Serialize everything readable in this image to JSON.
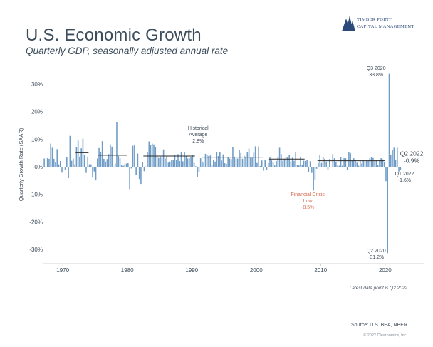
{
  "header": {
    "title": "U.S. Economic Growth",
    "subtitle": "Quarterly GDP, seasonally adjusted annual rate"
  },
  "logo": {
    "line1": "TIMBER POINT",
    "line2": "CAPITAL MANAGEMENT",
    "icon": "pine-trees-icon"
  },
  "footer": {
    "footnote": "Latest data point is Q2 2022",
    "source": "Source: U.S. BEA, NBER",
    "copyright": "© 2022 Clearnomics, Inc."
  },
  "colors": {
    "bar": "#6f9cc6",
    "average_line": "#2b2b2b",
    "recession_label": "#d96a4f",
    "text": "#3d4a57",
    "zero_line": "#8a8f94"
  },
  "chart_data": {
    "type": "bar",
    "ylabel": "Quarterly Growth Rate (SAAR)",
    "ylim": [
      -35,
      35
    ],
    "yticks": [
      30,
      20,
      10,
      0,
      -10,
      -20,
      -30
    ],
    "ytick_labels": [
      "30%",
      "20%",
      "10%",
      "-0%",
      "-10%",
      "-20%",
      "-30%"
    ],
    "xlim": [
      1967.0,
      2023.0
    ],
    "xticks": [
      1970,
      1980,
      1990,
      2000,
      2010,
      2020
    ],
    "xtick_labels": [
      "1970",
      "1980",
      "1990",
      "2000",
      "2010",
      "2020"
    ],
    "grid": false,
    "start_year": 1967,
    "start_quarter": 1,
    "values": [
      3.1,
      0.2,
      3.2,
      3.0,
      8.5,
      7.0,
      3.0,
      1.9,
      6.5,
      1.0,
      2.2,
      -2.0,
      0.1,
      -0.9,
      3.7,
      -4.0,
      11.3,
      2.3,
      3.1,
      1.0,
      7.3,
      9.6,
      3.8,
      6.8,
      10.3,
      4.5,
      -2.1,
      3.8,
      1.0,
      1.0,
      -3.8,
      -1.6,
      -4.8,
      3.1,
      6.9,
      5.4,
      9.4,
      3.0,
      2.0,
      2.9,
      4.7,
      8.2,
      7.4,
      0.0,
      1.3,
      16.4,
      4.0,
      3.2,
      0.7,
      0.5,
      1.0,
      1.3,
      1.4,
      -8.0,
      -0.5,
      7.7,
      8.1,
      -2.9,
      4.9,
      -4.3,
      -6.1,
      1.8,
      -1.5,
      0.2,
      5.3,
      9.3,
      8.1,
      8.5,
      8.2,
      7.1,
      3.9,
      3.3,
      3.8,
      3.4,
      6.4,
      3.1,
      4.0,
      1.6,
      2.0,
      2.5,
      2.5,
      4.5,
      2.7,
      4.7,
      2.2,
      5.3,
      2.1,
      5.4,
      4.1,
      3.1,
      3.2,
      3.7,
      4.4,
      1.5,
      0.3,
      -3.6,
      -1.9,
      3.2,
      2.0,
      1.6,
      4.8,
      4.4,
      4.0,
      4.2,
      0.7,
      2.6,
      2.0,
      5.5,
      4.0,
      5.5,
      2.4,
      4.6,
      1.4,
      1.2,
      3.5,
      3.1,
      2.9,
      7.2,
      3.6,
      3.1,
      3.1,
      6.2,
      5.1,
      3.0,
      4.1,
      3.8,
      5.3,
      6.7,
      3.4,
      3.4,
      5.2,
      7.5,
      1.5,
      7.5,
      0.4,
      2.4,
      -1.3,
      2.6,
      -1.1,
      1.4,
      3.5,
      2.4,
      1.8,
      0.6,
      2.2,
      3.5,
      7.0,
      4.7,
      2.3,
      3.0,
      3.7,
      3.5,
      4.3,
      2.1,
      3.4,
      2.3,
      5.4,
      0.9,
      0.6,
      3.5,
      0.9,
      2.3,
      2.2,
      2.5,
      -1.7,
      2.1,
      -2.1,
      -8.5,
      -4.5,
      -0.6,
      1.5,
      4.5,
      1.5,
      3.7,
      3.0,
      2.0,
      -1.0,
      2.9,
      -0.1,
      4.7,
      3.2,
      1.7,
      0.5,
      0.5,
      3.6,
      0.5,
      3.2,
      3.2,
      -1.1,
      5.5,
      5.0,
      2.3,
      3.2,
      2.7,
      1.6,
      0.5,
      2.3,
      1.3,
      2.2,
      2.0,
      2.3,
      2.2,
      3.2,
      3.5,
      3.3,
      2.1,
      2.5,
      0.9,
      2.4,
      3.2,
      2.8,
      1.9,
      -5.1,
      -31.2,
      33.8,
      4.5,
      6.3,
      7.0,
      2.7,
      7.0,
      -1.6,
      -0.9
    ],
    "average": 2.8,
    "average_segments": [
      [
        1972.0,
        1974.0,
        5.2
      ],
      [
        1975.5,
        1980.0,
        4.3
      ],
      [
        1982.5,
        1990.5,
        4.0
      ],
      [
        1991.5,
        2001.0,
        3.6
      ],
      [
        2002.0,
        2007.5,
        2.9
      ],
      [
        2009.5,
        2020.0,
        2.3
      ]
    ],
    "annotations": [
      {
        "lines": [
          "Historical",
          "Average",
          "2.8%"
        ],
        "x": 1991.0,
        "y": 13.5,
        "color": "#3d4a57"
      },
      {
        "lines": [
          "Financial Crisis",
          "Low",
          "-8.5%"
        ],
        "x": 2008.0,
        "y": -10.5,
        "color": "#d96a4f"
      },
      {
        "lines": [
          "Q3 2020",
          "33.8%"
        ],
        "x": 2018.6,
        "y": 35.2,
        "color": "#3d4a57"
      },
      {
        "lines": [
          "Q2 2020",
          "-31.2%"
        ],
        "x": 2018.6,
        "y": -30.9,
        "color": "#3d4a57"
      },
      {
        "lines": [
          "Q1 2022",
          "-1.6%"
        ],
        "x": 2023.0,
        "y": -3.0,
        "color": "#3d4a57"
      }
    ],
    "latest_label": {
      "lines": [
        "Q2 2022",
        "-0.9%"
      ]
    }
  }
}
